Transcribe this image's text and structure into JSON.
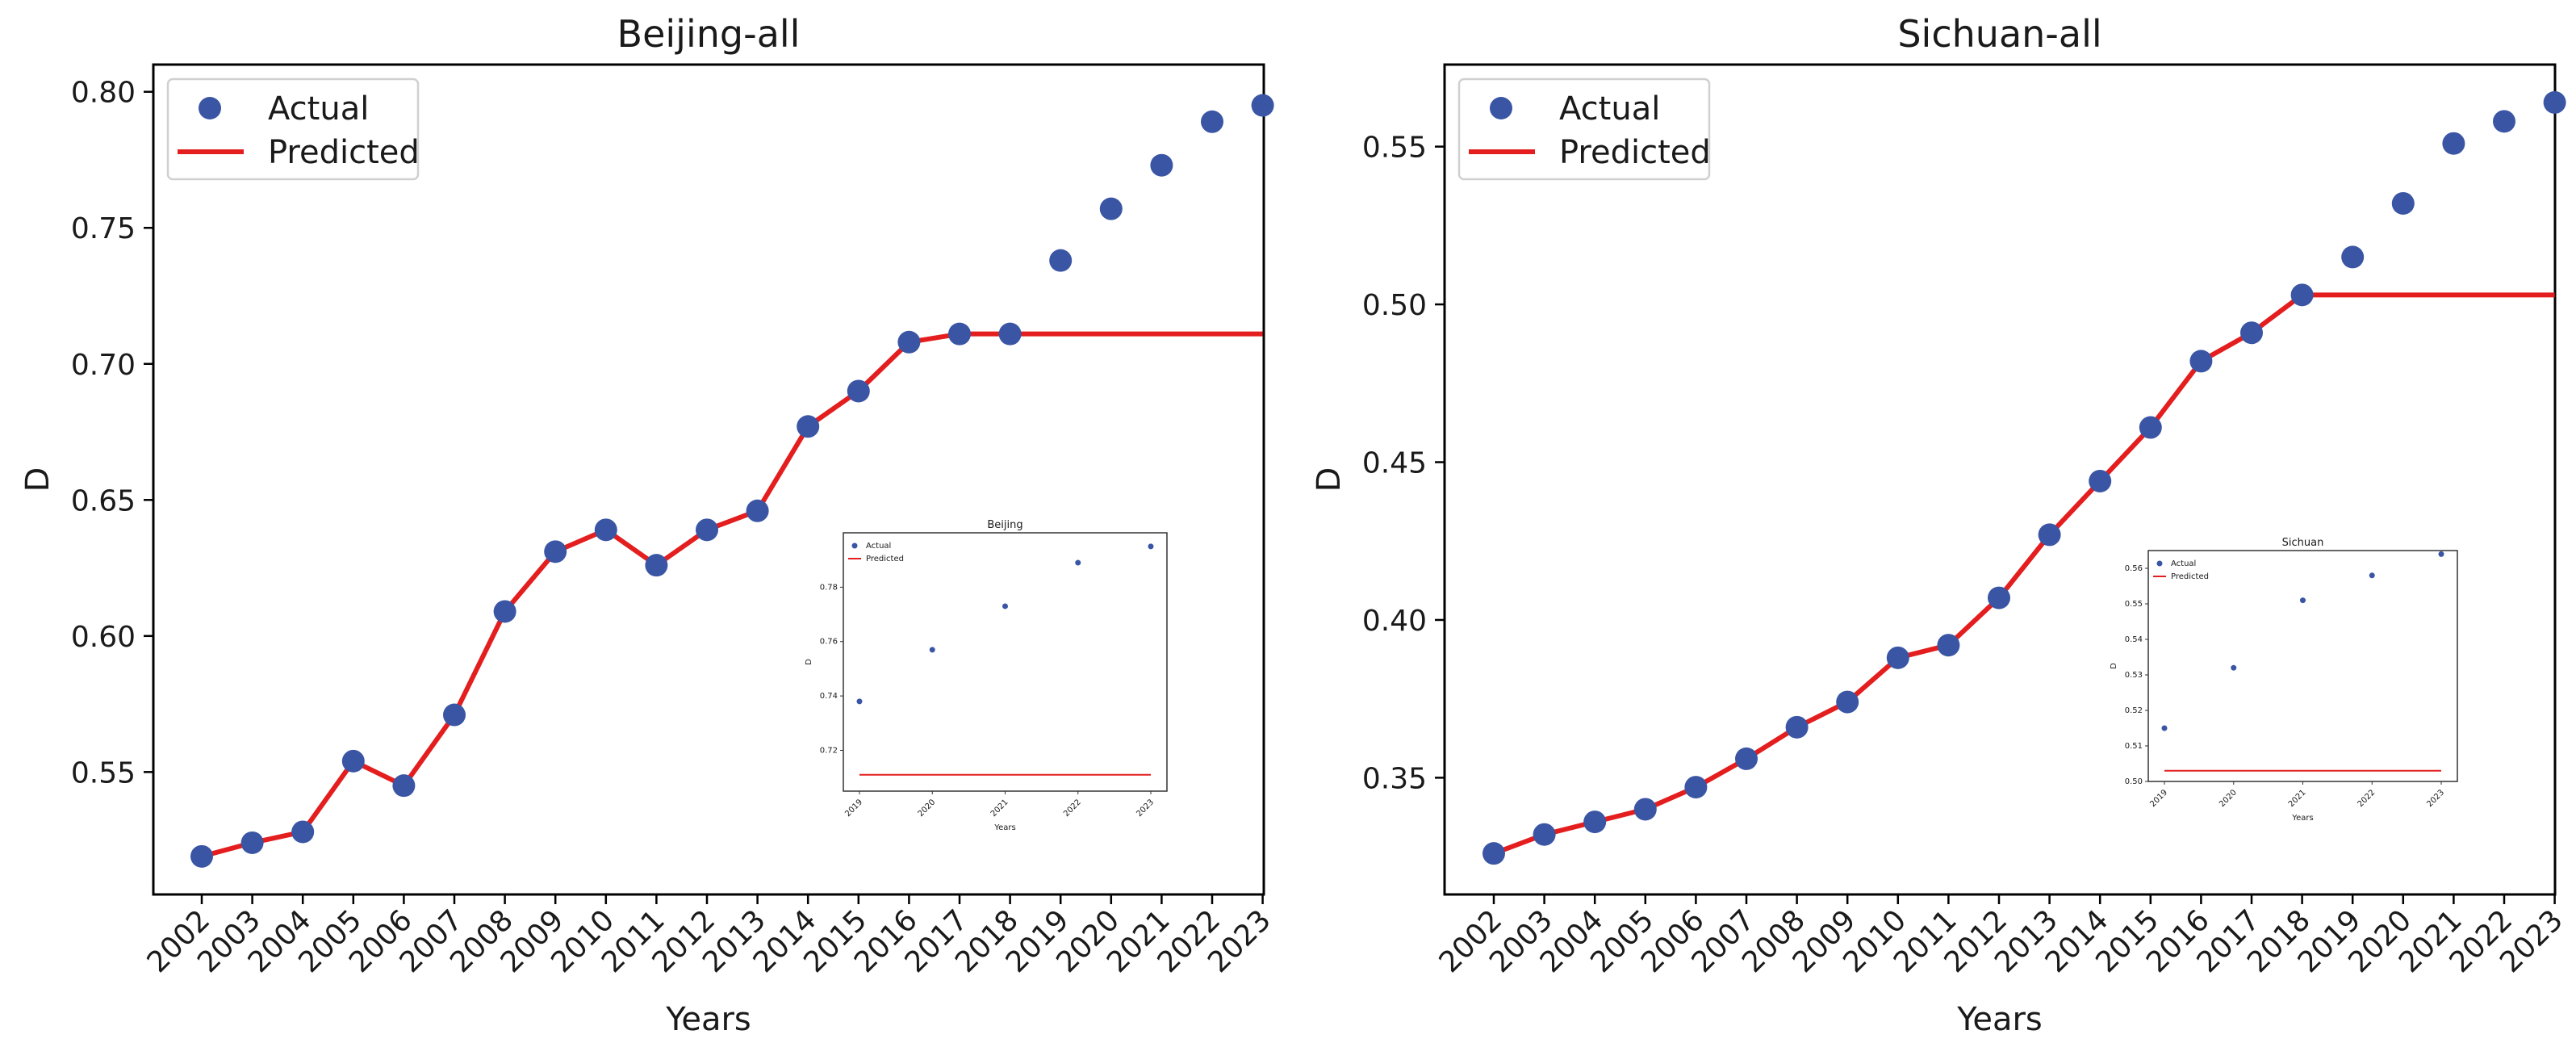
{
  "colors": {
    "actual": "#3a55a4",
    "predicted": "#e41e1e",
    "axes": "#000000",
    "background": "#ffffff"
  },
  "chart_data": [
    {
      "type": "line",
      "title": "Beijing-all",
      "xlabel": "Years",
      "ylabel": "D",
      "categories": [
        "2002",
        "2003",
        "2004",
        "2005",
        "2006",
        "2007",
        "2008",
        "2009",
        "2010",
        "2011",
        "2012",
        "2013",
        "2014",
        "2015",
        "2016",
        "2017",
        "2018",
        "2019",
        "2020",
        "2021",
        "2022",
        "2023"
      ],
      "ylim": [
        0.505,
        0.81
      ],
      "yticks": [
        "0.55",
        "0.60",
        "0.65",
        "0.70",
        "0.75",
        "0.80"
      ],
      "legend": {
        "position": "top-left",
        "entries": [
          "Actual",
          "Predicted"
        ]
      },
      "series": [
        {
          "name": "Actual",
          "kind": "scatter",
          "values": [
            0.519,
            0.524,
            0.528,
            0.554,
            0.545,
            0.571,
            0.609,
            0.631,
            0.639,
            0.626,
            0.639,
            0.646,
            0.677,
            0.69,
            0.708,
            0.711,
            0.711,
            0.738,
            0.757,
            0.773,
            0.789,
            0.795
          ]
        },
        {
          "name": "Predicted",
          "kind": "line",
          "values": [
            0.519,
            0.524,
            0.528,
            0.554,
            0.545,
            0.571,
            0.609,
            0.631,
            0.639,
            0.626,
            0.639,
            0.646,
            0.677,
            0.69,
            0.708,
            0.711,
            0.711,
            0.711,
            0.711,
            0.711,
            0.711,
            0.711
          ]
        }
      ],
      "inset": {
        "title": "Beijing",
        "xlabel": "Years",
        "ylabel": "D",
        "categories": [
          "2019",
          "2020",
          "2021",
          "2022",
          "2023"
        ],
        "ylim": [
          0.705,
          0.8
        ],
        "yticks": [
          "0.72",
          "0.74",
          "0.76",
          "0.78"
        ],
        "legend": [
          "Actual",
          "Predicted"
        ],
        "actual": [
          0.738,
          0.757,
          0.773,
          0.789,
          0.795
        ],
        "predicted": [
          0.711,
          0.711,
          0.711,
          0.711,
          0.711
        ]
      }
    },
    {
      "type": "line",
      "title": "Sichuan-all",
      "xlabel": "Years",
      "ylabel": "D",
      "categories": [
        "2002",
        "2003",
        "2004",
        "2005",
        "2006",
        "2007",
        "2008",
        "2009",
        "2010",
        "2011",
        "2012",
        "2013",
        "2014",
        "2015",
        "2016",
        "2017",
        "2018",
        "2019",
        "2020",
        "2021",
        "2022",
        "2023"
      ],
      "ylim": [
        0.313,
        0.576
      ],
      "yticks": [
        "0.35",
        "0.40",
        "0.45",
        "0.50",
        "0.55"
      ],
      "legend": {
        "position": "top-left",
        "entries": [
          "Actual",
          "Predicted"
        ]
      },
      "series": [
        {
          "name": "Actual",
          "kind": "scatter",
          "values": [
            0.326,
            0.332,
            0.336,
            0.34,
            0.347,
            0.356,
            0.366,
            0.374,
            0.388,
            0.392,
            0.407,
            0.427,
            0.444,
            0.461,
            0.482,
            0.491,
            0.503,
            0.515,
            0.532,
            0.551,
            0.558,
            0.564
          ]
        },
        {
          "name": "Predicted",
          "kind": "line",
          "values": [
            0.326,
            0.332,
            0.336,
            0.34,
            0.347,
            0.356,
            0.366,
            0.374,
            0.388,
            0.392,
            0.407,
            0.427,
            0.444,
            0.461,
            0.482,
            0.491,
            0.503,
            0.503,
            0.503,
            0.503,
            0.503,
            0.503
          ]
        }
      ],
      "inset": {
        "title": "Sichuan",
        "xlabel": "Years",
        "ylabel": "D",
        "categories": [
          "2019",
          "2020",
          "2021",
          "2022",
          "2023"
        ],
        "ylim": [
          0.5,
          0.565
        ],
        "yticks": [
          "0.50",
          "0.51",
          "0.52",
          "0.53",
          "0.54",
          "0.55",
          "0.56"
        ],
        "legend": [
          "Actual",
          "Predicted"
        ],
        "actual": [
          0.515,
          0.532,
          0.551,
          0.558,
          0.564
        ],
        "predicted": [
          0.503,
          0.503,
          0.503,
          0.503,
          0.503
        ]
      }
    }
  ]
}
